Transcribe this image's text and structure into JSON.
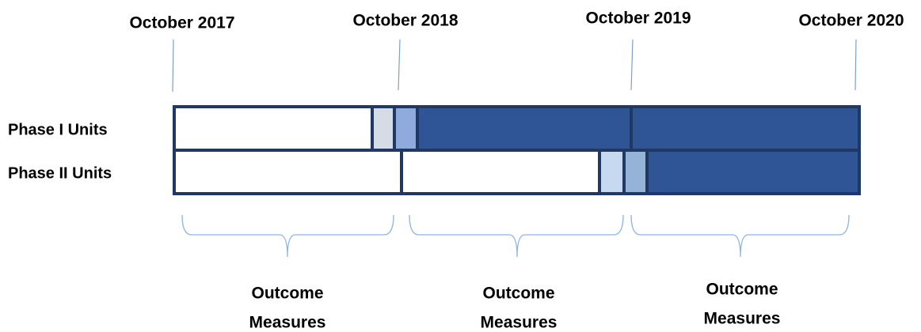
{
  "timeline": {
    "dates": [
      "October 2017",
      "October 2018",
      "October 2019",
      "October 2020"
    ],
    "rows": [
      "Phase I Units",
      "Phase II Units"
    ],
    "outcomes": [
      {
        "lines": [
          "Outcome",
          "Measures"
        ]
      },
      {
        "lines": [
          "Outcome",
          "Measures"
        ]
      },
      {
        "lines": [
          "Outcome",
          "Measures"
        ]
      }
    ]
  }
}
